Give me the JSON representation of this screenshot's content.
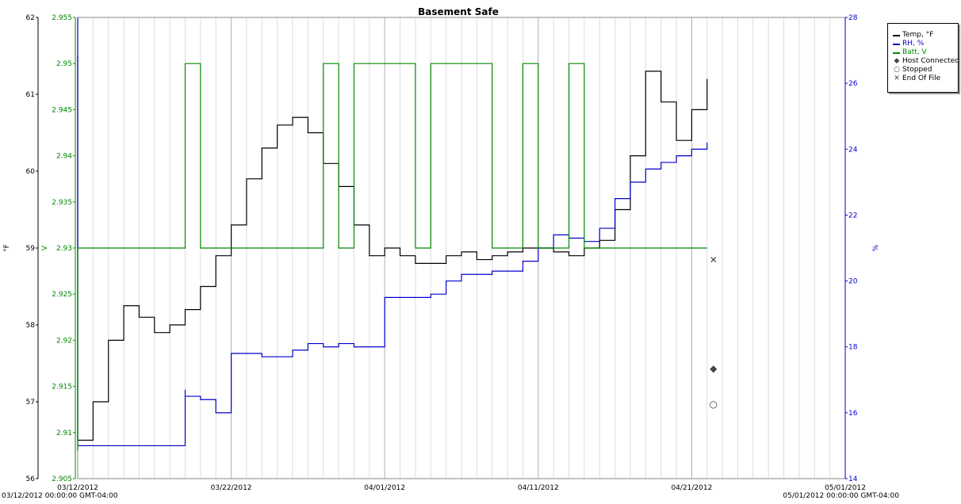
{
  "chart_data": {
    "type": "line",
    "title": "Basement Safe",
    "x_axis": {
      "type": "date",
      "range": [
        "03/12/2012",
        "05/01/2012"
      ],
      "tick_labels": [
        "03/12/2012",
        "03/22/2012",
        "04/01/2012",
        "04/11/2012",
        "04/21/2012",
        "05/01/2012"
      ],
      "start_label": "03/12/2012 00:00:00 GMT-04:00",
      "end_label": "05/01/2012 00:00:00 GMT-04:00",
      "grid": true
    },
    "y_axes": [
      {
        "id": "temp",
        "label": "°F",
        "range": [
          56,
          62
        ],
        "ticks": [
          "56",
          "57",
          "58",
          "59",
          "60",
          "61",
          "62"
        ],
        "color": "#000000",
        "position": "left-inner"
      },
      {
        "id": "batt",
        "label": "V",
        "range": [
          2.905,
          2.955
        ],
        "ticks": [
          "2.905",
          "2.91",
          "2.915",
          "2.92",
          "2.925",
          "2.93",
          "2.935",
          "2.94",
          "2.945",
          "2.95",
          "2.955"
        ],
        "color": "#008800",
        "position": "left"
      },
      {
        "id": "rh",
        "label": "%",
        "range": [
          14,
          28
        ],
        "ticks": [
          "14",
          "16",
          "18",
          "20",
          "22",
          "24",
          "26",
          "28"
        ],
        "color": "#0000cc",
        "position": "right"
      }
    ],
    "series": [
      {
        "name": "Temp, °F",
        "axis": "temp",
        "color": "#000000",
        "x": [
          "03/12/2012",
          "03/12/2012",
          "03/13/2012",
          "03/14/2012",
          "03/15/2012",
          "03/16/2012",
          "03/17/2012",
          "03/18/2012",
          "03/19/2012",
          "03/20/2012",
          "03/21/2012",
          "03/22/2012",
          "03/23/2012",
          "03/24/2012",
          "03/25/2012",
          "03/26/2012",
          "03/27/2012",
          "03/28/2012",
          "03/29/2012",
          "03/30/2012",
          "03/31/2012",
          "04/01/2012",
          "04/02/2012",
          "04/03/2012",
          "04/04/2012",
          "04/05/2012",
          "04/06/2012",
          "04/07/2012",
          "04/08/2012",
          "04/09/2012",
          "04/10/2012",
          "04/11/2012",
          "04/12/2012",
          "04/13/2012",
          "04/14/2012",
          "04/15/2012",
          "04/16/2012",
          "04/17/2012",
          "04/18/2012",
          "04/19/2012",
          "04/20/2012",
          "04/21/2012",
          "04/22/2012"
        ],
        "values": [
          61.5,
          56.5,
          57.0,
          57.8,
          58.25,
          58.1,
          57.9,
          58.0,
          58.2,
          58.5,
          58.9,
          59.3,
          59.9,
          60.3,
          60.6,
          60.7,
          60.5,
          60.1,
          59.8,
          59.3,
          58.9,
          59.0,
          58.9,
          58.8,
          58.8,
          58.9,
          58.95,
          58.85,
          58.9,
          58.95,
          59.0,
          59.0,
          58.95,
          58.9,
          59.0,
          59.1,
          59.5,
          60.2,
          61.3,
          60.9,
          60.4,
          60.8,
          61.2
        ]
      },
      {
        "name": "RH, %",
        "axis": "rh",
        "color": "#0000cc",
        "x": [
          "03/12/2012",
          "03/12/2012",
          "03/12/2012",
          "03/15/2012",
          "03/18/2012",
          "03/19/2012",
          "03/19/2012",
          "03/20/2012",
          "03/21/2012",
          "03/22/2012",
          "03/22/2012",
          "03/24/2012",
          "03/26/2012",
          "03/27/2012",
          "03/28/2012",
          "03/29/2012",
          "03/30/2012",
          "03/31/2012",
          "04/01/2012",
          "04/02/2012",
          "04/04/2012",
          "04/05/2012",
          "04/06/2012",
          "04/08/2012",
          "04/10/2012",
          "04/11/2012",
          "04/12/2012",
          "04/13/2012",
          "04/14/2012",
          "04/15/2012",
          "04/16/2012",
          "04/17/2012",
          "04/18/2012",
          "04/19/2012",
          "04/20/2012",
          "04/21/2012",
          "04/22/2012"
        ],
        "values": [
          28.0,
          15.4,
          15.0,
          15.0,
          15.0,
          16.7,
          16.5,
          16.4,
          16.0,
          17.8,
          17.8,
          17.7,
          17.9,
          18.1,
          18.0,
          18.1,
          18.0,
          18.0,
          19.5,
          19.5,
          19.6,
          20.0,
          20.2,
          20.3,
          20.6,
          21.0,
          21.4,
          21.3,
          21.2,
          21.6,
          22.5,
          23.0,
          23.4,
          23.6,
          23.8,
          24.0,
          24.2
        ]
      },
      {
        "name": "Batt, V",
        "axis": "batt",
        "color": "#008800",
        "x": [
          "03/12/2012",
          "03/12/2012",
          "03/19/2012",
          "03/19/2012",
          "03/20/2012",
          "03/20/2012",
          "03/28/2012",
          "03/28/2012",
          "03/29/2012",
          "03/29/2012",
          "03/30/2012",
          "03/30/2012",
          "04/03/2012",
          "04/03/2012",
          "04/04/2012",
          "04/04/2012",
          "04/08/2012",
          "04/08/2012",
          "04/10/2012",
          "04/10/2012",
          "04/11/2012",
          "04/11/2012",
          "04/13/2012",
          "04/13/2012",
          "04/14/2012",
          "04/14/2012",
          "04/22/2012"
        ],
        "values": [
          2.908,
          2.93,
          2.93,
          2.95,
          2.95,
          2.93,
          2.93,
          2.95,
          2.95,
          2.93,
          2.93,
          2.95,
          2.95,
          2.93,
          2.93,
          2.95,
          2.95,
          2.93,
          2.93,
          2.95,
          2.95,
          2.93,
          2.93,
          2.95,
          2.95,
          2.93,
          2.93
        ]
      }
    ],
    "markers": [
      {
        "name": "Host Connected",
        "symbol": "◆",
        "color": "#444444"
      },
      {
        "name": "Stopped",
        "symbol": "○",
        "color": "#444444"
      },
      {
        "name": "End Of File",
        "symbol": "✕",
        "color": "#444444"
      }
    ],
    "legend": {
      "position": "top-right",
      "entries": [
        {
          "label": "Temp, °F",
          "kind": "line",
          "color": "#000000"
        },
        {
          "label": "RH, %",
          "kind": "line",
          "color": "#0000cc"
        },
        {
          "label": "Batt, V",
          "kind": "line",
          "color": "#008800"
        },
        {
          "label": "Host Connected",
          "kind": "symbol",
          "symbol": "◆",
          "color": "#444444"
        },
        {
          "label": "Stopped",
          "kind": "symbol",
          "symbol": "○",
          "color": "#444444"
        },
        {
          "label": "End Of File",
          "kind": "symbol",
          "symbol": "✕",
          "color": "#444444"
        }
      ]
    }
  }
}
